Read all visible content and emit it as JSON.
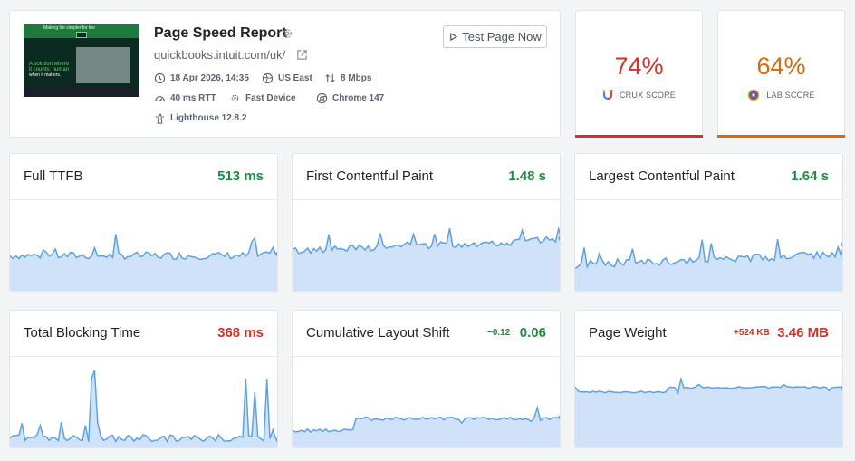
{
  "report": {
    "title": "Page Speed Report",
    "url": "quickbooks.intuit.com/uk/",
    "test_button": "Test Page Now",
    "thumbnail": {
      "heading": "Making life simpler for the",
      "green_text": "A solution where it counts: human",
      "white_text": "when it matters."
    },
    "meta": [
      {
        "icon": "clock-icon",
        "text": "18 Apr 2026, 14:35"
      },
      {
        "icon": "globe-icon",
        "text": "US East"
      },
      {
        "icon": "bandwidth-icon",
        "text": "8 Mbps"
      },
      {
        "icon": "gauge-icon",
        "text": "40 ms RTT"
      },
      {
        "icon": "cpu-icon",
        "text": "Fast Device"
      },
      {
        "icon": "chrome-icon",
        "text": "Chrome 147"
      },
      {
        "icon": "lighthouse-icon",
        "text": "Lighthouse 12.8.2"
      }
    ]
  },
  "scores": {
    "crux": {
      "value": "74%",
      "label": "CRUX SCORE",
      "color": "#d93025"
    },
    "lab": {
      "value": "64%",
      "label": "LAB SCORE",
      "color": "#d66a0e"
    }
  },
  "metrics": [
    {
      "name": "Full TTFB",
      "value": "513 ms",
      "status": "good",
      "delta": "",
      "level": 0.4
    },
    {
      "name": "First Contentful Paint",
      "value": "1.48 s",
      "status": "good",
      "delta": "",
      "level": 0.45
    },
    {
      "name": "Largest Contentful Paint",
      "value": "1.64 s",
      "status": "good",
      "delta": "",
      "level": 0.3
    },
    {
      "name": "Total Blocking Time",
      "value": "368 ms",
      "status": "bad",
      "delta": "",
      "level": 0.12
    },
    {
      "name": "Cumulative Layout Shift",
      "value": "0.06",
      "status": "good",
      "delta": "−0.12",
      "level": 0.28
    },
    {
      "name": "Page Weight",
      "value": "3.46 MB",
      "status": "bad",
      "delta": "+524 KB",
      "level": 0.62
    }
  ],
  "colors": {
    "good": "#1e8e3e",
    "bad": "#d93025",
    "warn": "#d66a0e",
    "spark_line": "#5ba2e8",
    "spark_fill": "#cfe2f9"
  }
}
